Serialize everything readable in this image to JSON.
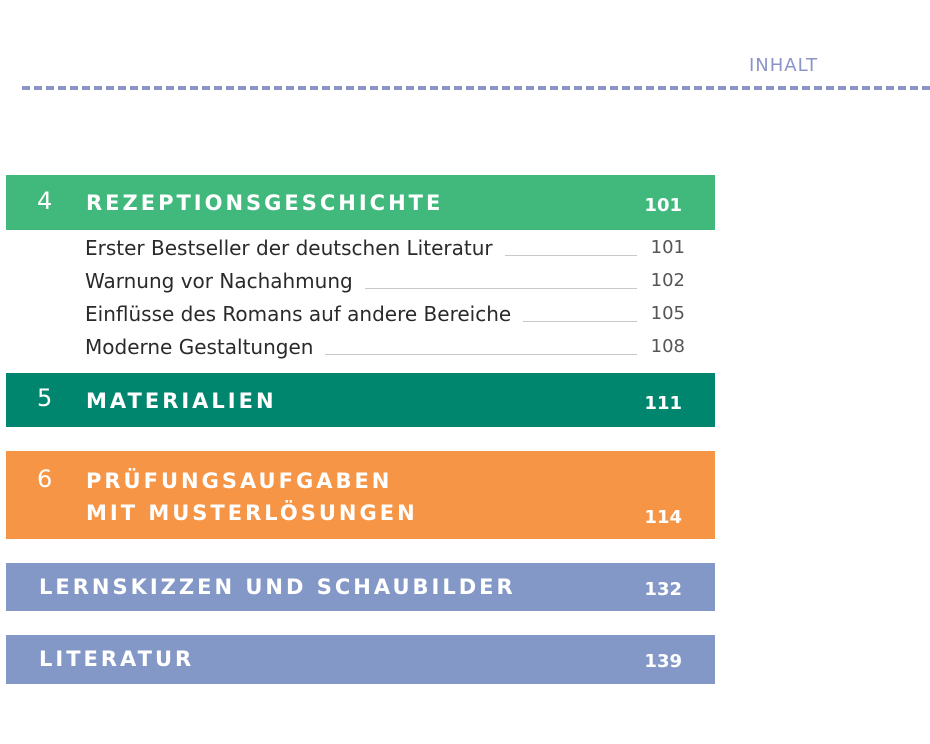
{
  "header": {
    "label": "INHALT"
  },
  "chapters": [
    {
      "number": "4",
      "title": "REZEPTIONSGESCHICHTE",
      "page": "101",
      "color": "#41b97c",
      "items": [
        {
          "label": "Erster Bestseller der deutschen Literatur",
          "page": "101"
        },
        {
          "label": "Warnung vor Nachahmung",
          "page": "102"
        },
        {
          "label": "Einflüsse des Romans auf andere Bereiche",
          "page": "105"
        },
        {
          "label": "Moderne Gestaltungen",
          "page": "108"
        }
      ]
    },
    {
      "number": "5",
      "title": "MATERIALIEN",
      "page": "111",
      "color": "#00866f"
    },
    {
      "number": "6",
      "title_line1": "PRÜFUNGSAUFGABEN",
      "title_line2": "MIT MUSTERLÖSUNGEN",
      "page": "114",
      "color": "#f69546"
    },
    {
      "title": "LERNSKIZZEN UND SCHAUBILDER",
      "page": "132",
      "color": "#8498c7"
    },
    {
      "title": "LITERATUR",
      "page": "139",
      "color": "#8498c7"
    }
  ]
}
